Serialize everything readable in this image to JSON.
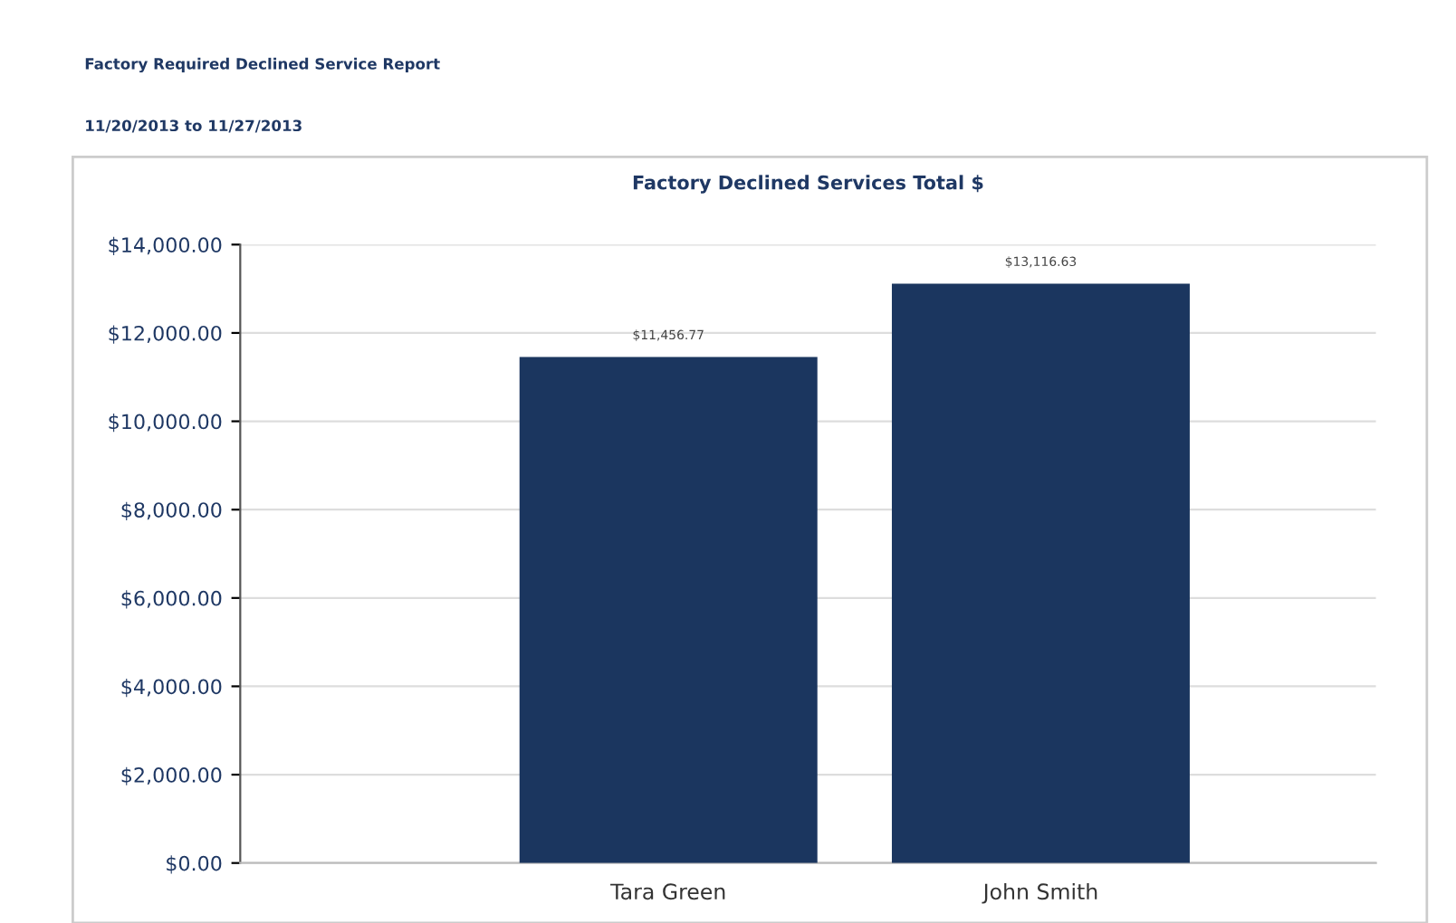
{
  "chart_data": {
    "type": "bar",
    "title": "Factory Declined Services Total $",
    "annotations": [
      "Factory Required Declined Service Report",
      "11/20/2013 to 11/27/2013"
    ],
    "categories": [
      "Tara Green",
      "John Smith"
    ],
    "values": [
      11456.77,
      13116.63
    ],
    "color": "#1b365f",
    "value_labels": [
      "$11,456.77",
      "$13,116.63"
    ],
    "ylim": [
      0,
      14000
    ],
    "yticks": [
      {
        "value": 0,
        "label": "$0.00"
      },
      {
        "value": 2000,
        "label": "$2,000.00"
      },
      {
        "value": 4000,
        "label": "$4,000.00"
      },
      {
        "value": 6000,
        "label": "$6,000.00"
      },
      {
        "value": 8000,
        "label": "$8,000.00"
      },
      {
        "value": 10000,
        "label": "$10,000.00"
      },
      {
        "value": 12000,
        "label": "$12,000.00"
      },
      {
        "value": 14000,
        "label": "$14,000.00"
      }
    ],
    "grid": "y"
  }
}
